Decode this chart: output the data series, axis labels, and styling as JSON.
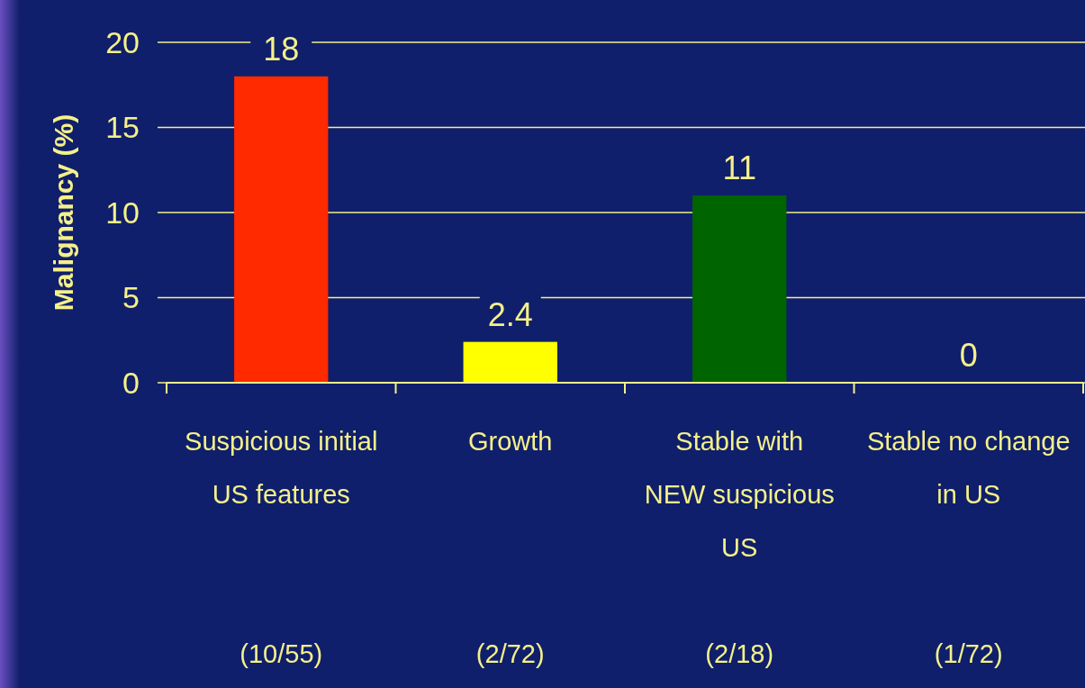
{
  "chart_data": {
    "type": "bar",
    "ylabel": "Malignancy (%)",
    "categories": [
      "Suspicious initial\nUS features\n\n\n(10/55)",
      "Growth\n\n\n\n(2/72)",
      "Stable with\nNEW suspicious\nUS\n\n(2/18)",
      "Stable no change\nin US\n\n\n(1/72)"
    ],
    "values": [
      18,
      2.4,
      11,
      0
    ],
    "colors": [
      "#ff2a00",
      "#ffff00",
      "#006400",
      "#ffffff"
    ],
    "ylim": [
      0,
      20
    ],
    "yticks": [
      0,
      5,
      10,
      15,
      20
    ],
    "grid": "y",
    "data_labels": true
  }
}
